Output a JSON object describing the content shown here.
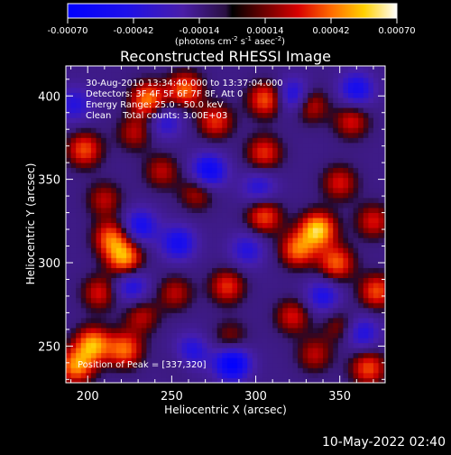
{
  "chart_data": {
    "type": "heatmap",
    "title": "Reconstructed RHESSI Image",
    "xlabel": "Heliocentric X (arcsec)",
    "ylabel": "Heliocentric Y (arcsec)",
    "xlim": [
      187,
      377
    ],
    "ylim": [
      228,
      418
    ],
    "x_ticks": [
      200,
      250,
      300,
      350
    ],
    "y_ticks": [
      250,
      300,
      350,
      400
    ],
    "colorbar": {
      "range": [
        -0.0007,
        0.0007
      ],
      "ticks": [
        -0.0007,
        -0.00042,
        -0.00014,
        0.00014,
        0.00042,
        0.0007
      ],
      "tick_labels": [
        "-0.00070",
        "-0.00042",
        "-0.00014",
        "0.00014",
        "0.00042",
        "0.00070"
      ],
      "units_label": "(photons cm^-2 s^-1 asec^-2)",
      "units_parts": [
        "(photons cm",
        "-2",
        " s",
        "-1",
        " asec",
        "-2",
        ")"
      ]
    },
    "annotations": [
      "30-Aug-2010 13:34:40.000 to 13:37:04.000",
      "Detectors: 3F 4F 5F 6F 7F 8F, Att 0",
      "Energy Range: 25.0 - 50.0 keV",
      "Clean    Total counts: 3.00E+03"
    ],
    "peak_label": "Position of Peak = [337,320]",
    "peak_position": [
      337,
      320
    ],
    "peaks": [
      {
        "x": 337,
        "y": 320,
        "v": 0.00068
      },
      {
        "x": 325,
        "y": 308,
        "v": 0.0005
      },
      {
        "x": 348,
        "y": 300,
        "v": 0.00048
      },
      {
        "x": 203,
        "y": 251,
        "v": 0.0006
      },
      {
        "x": 193,
        "y": 238,
        "v": 0.00055
      },
      {
        "x": 222,
        "y": 248,
        "v": 0.0005
      },
      {
        "x": 222,
        "y": 303,
        "v": 0.00058
      },
      {
        "x": 214,
        "y": 315,
        "v": 0.00048
      },
      {
        "x": 198,
        "y": 368,
        "v": 0.00045
      },
      {
        "x": 236,
        "y": 398,
        "v": 0.00055
      },
      {
        "x": 258,
        "y": 404,
        "v": 0.0005
      },
      {
        "x": 276,
        "y": 385,
        "v": 0.0004
      },
      {
        "x": 306,
        "y": 398,
        "v": 0.00048
      },
      {
        "x": 332,
        "y": 395,
        "v": 0.0004
      },
      {
        "x": 305,
        "y": 328,
        "v": 0.00045
      },
      {
        "x": 283,
        "y": 286,
        "v": 0.0004
      },
      {
        "x": 252,
        "y": 282,
        "v": 0.0003
      },
      {
        "x": 372,
        "y": 283,
        "v": 0.00045
      },
      {
        "x": 367,
        "y": 237,
        "v": 0.00045
      },
      {
        "x": 322,
        "y": 268,
        "v": 0.00035
      },
      {
        "x": 305,
        "y": 366,
        "v": 0.0004
      },
      {
        "x": 350,
        "y": 348,
        "v": 0.00035
      },
      {
        "x": 370,
        "y": 325,
        "v": 0.00035
      },
      {
        "x": 265,
        "y": 342,
        "v": 0.0003
      },
      {
        "x": 244,
        "y": 355,
        "v": 0.0003
      },
      {
        "x": 232,
        "y": 268,
        "v": 0.0003
      },
      {
        "x": 207,
        "y": 282,
        "v": 0.00035
      },
      {
        "x": 258,
        "y": 243,
        "v": 0.00025
      },
      {
        "x": 335,
        "y": 245,
        "v": 0.0003
      },
      {
        "x": 357,
        "y": 385,
        "v": 0.00035
      },
      {
        "x": 210,
        "y": 338,
        "v": 0.0003
      },
      {
        "x": 285,
        "y": 255,
        "v": 0.00025
      },
      {
        "x": 350,
        "y": 262,
        "v": 0.00025
      },
      {
        "x": 228,
        "y": 378,
        "v": 0.0003
      }
    ],
    "troughs": [
      {
        "x": 286,
        "y": 240,
        "v": -0.0006
      },
      {
        "x": 261,
        "y": 246,
        "v": -0.0005
      },
      {
        "x": 272,
        "y": 355,
        "v": -0.0005
      },
      {
        "x": 231,
        "y": 322,
        "v": -0.0004
      },
      {
        "x": 323,
        "y": 400,
        "v": -0.00045
      },
      {
        "x": 360,
        "y": 404,
        "v": -0.0004
      },
      {
        "x": 254,
        "y": 312,
        "v": -0.0004
      },
      {
        "x": 295,
        "y": 308,
        "v": -0.0003
      },
      {
        "x": 363,
        "y": 258,
        "v": -0.00035
      },
      {
        "x": 192,
        "y": 395,
        "v": -0.0003
      },
      {
        "x": 340,
        "y": 280,
        "v": -0.00035
      },
      {
        "x": 302,
        "y": 345,
        "v": -0.0003
      },
      {
        "x": 246,
        "y": 385,
        "v": -0.0003
      },
      {
        "x": 226,
        "y": 286,
        "v": -0.00035
      }
    ]
  },
  "footer": {
    "date": "10-May-2022 02:40"
  }
}
